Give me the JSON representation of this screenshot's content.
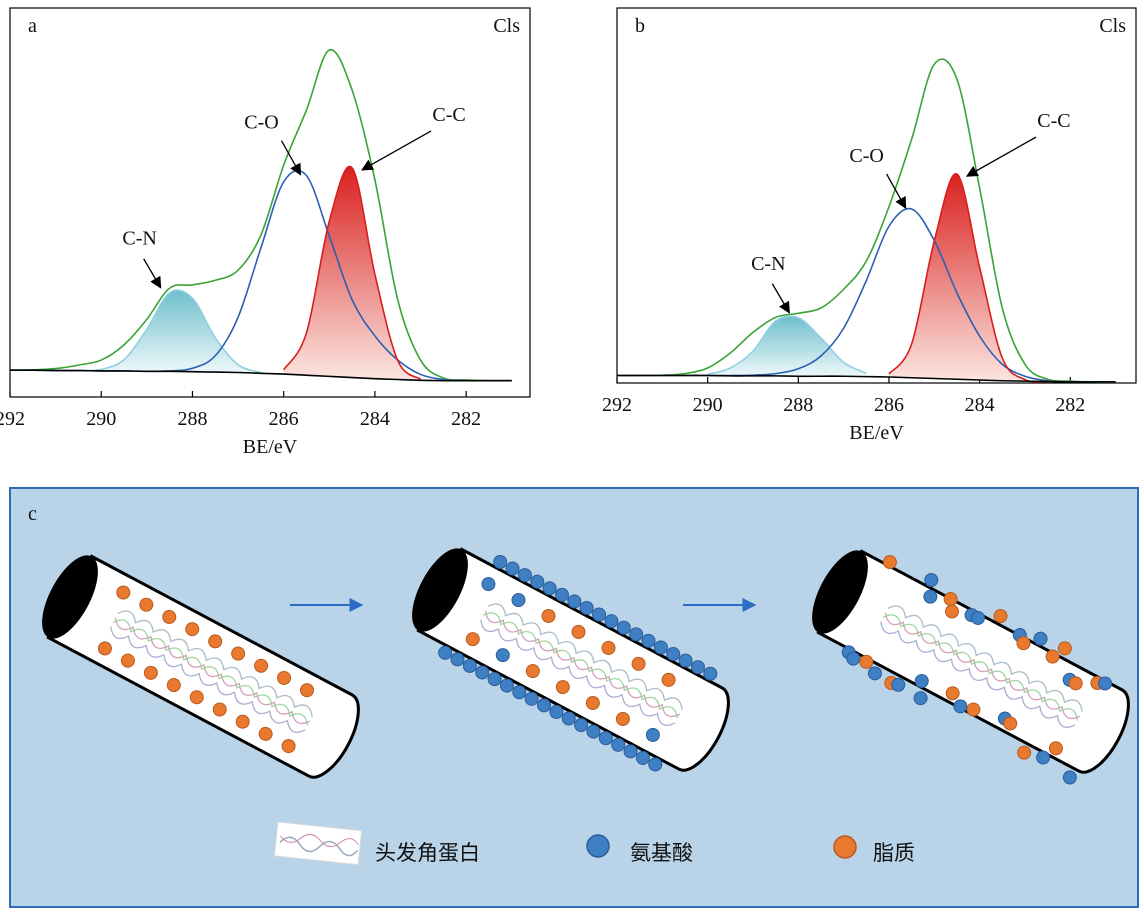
{
  "chart_data": [
    {
      "type": "line",
      "panel_label": "a",
      "corner_label": "Cls",
      "x_label": "BE/eV",
      "xlim": [
        292,
        280.6
      ],
      "ylim": [
        0,
        100
      ],
      "xticks": [
        292,
        290,
        288,
        286,
        284,
        282
      ],
      "x": [
        292,
        291.5,
        291,
        290.5,
        290,
        289.5,
        289,
        288.5,
        288,
        287.5,
        287,
        286.5,
        286,
        285.5,
        285,
        284.5,
        284,
        283.5,
        283,
        282.5,
        282,
        281.5,
        281
      ],
      "series": [
        {
          "color": "#3aa335",
          "values": [
            6.9,
            7.0,
            7.3,
            8.2,
            9.5,
            13.4,
            20,
            28,
            28.8,
            30,
            32.6,
            41.6,
            59.6,
            73.8,
            89.2,
            78.9,
            55.8,
            25,
            9.5,
            4.9,
            4.4,
            4.2,
            4.2
          ]
        },
        {
          "name": "C-N",
          "color": "#8fd0e0",
          "area": true,
          "values": [
            null,
            null,
            null,
            6.8,
            7.1,
            9.6,
            17.4,
            26.8,
            25.4,
            15.2,
            8.3,
            6.3,
            null,
            null,
            null,
            null,
            null,
            null,
            null,
            null,
            null,
            null,
            null
          ]
        },
        {
          "name": "C-O",
          "color": "#2b5fb4",
          "values": [
            6.9,
            6.9,
            6.8,
            6.8,
            6.7,
            6.7,
            6.6,
            6.7,
            7.4,
            10.6,
            20.5,
            38.3,
            55.3,
            56.9,
            41.4,
            25,
            15.7,
            9.5,
            5.8,
            4.5,
            4.2,
            4.2,
            4.2
          ]
        },
        {
          "name": "C-C",
          "color": "#d81e1e",
          "area": true,
          "values": [
            null,
            null,
            null,
            null,
            null,
            null,
            null,
            null,
            null,
            null,
            null,
            null,
            7.0,
            16.5,
            45.2,
            58.9,
            31.5,
            9.4,
            4.6,
            null,
            null,
            null,
            null
          ]
        },
        {
          "color": "#000000",
          "values": [
            6.9,
            6.9,
            6.8,
            6.8,
            6.7,
            6.7,
            6.6,
            6.6,
            6.5,
            6.4,
            6.3,
            6.1,
            5.9,
            5.6,
            5.3,
            5.0,
            4.7,
            4.5,
            4.3,
            4.2,
            4.2,
            4.2,
            4.2
          ]
        }
      ]
    },
    {
      "type": "line",
      "panel_label": "b",
      "corner_label": "Cls",
      "x_label": "BE/eV",
      "xlim": [
        292,
        280.55
      ],
      "ylim": [
        0,
        100
      ],
      "xticks": [
        292,
        290,
        288,
        286,
        284,
        282
      ],
      "x": [
        292,
        291.5,
        291,
        290.5,
        290,
        289.5,
        289,
        288.5,
        288,
        287.5,
        287,
        286.5,
        286,
        285.5,
        285,
        284.5,
        284,
        283.5,
        283,
        282.5,
        282,
        281.5,
        281
      ],
      "series": [
        {
          "color": "#3aa335",
          "values": [
            2.0,
            2.0,
            2.1,
            2.5,
            4,
            8,
            13.5,
            17.5,
            18.6,
            20,
            25,
            32.5,
            47,
            65,
            85,
            81,
            52,
            20,
            5,
            1,
            0.5,
            0.3,
            0.3
          ]
        },
        {
          "name": "C-N",
          "color": "#8fd0e0",
          "area": true,
          "values": [
            null,
            null,
            null,
            null,
            2.3,
            4,
            8.5,
            16.5,
            17.4,
            12,
            5.5,
            2.6,
            null,
            null,
            null,
            null,
            null,
            null,
            null,
            null,
            null,
            null,
            null
          ]
        },
        {
          "name": "C-O",
          "color": "#2b5fb4",
          "values": [
            2.0,
            2.0,
            2.0,
            2.0,
            2.0,
            2.0,
            2.1,
            2.5,
            3.8,
            7.2,
            14.6,
            27.3,
            41.8,
            46.4,
            38,
            24,
            12.5,
            5,
            1.8,
            0.6,
            0.3,
            0.3,
            0.3
          ]
        },
        {
          "name": "C-C",
          "color": "#d81e1e",
          "area": true,
          "values": [
            null,
            null,
            null,
            null,
            null,
            null,
            null,
            null,
            null,
            null,
            null,
            null,
            2.4,
            10.4,
            37.9,
            55.7,
            30.8,
            6.7,
            0.9,
            0.4,
            null,
            null,
            null
          ]
        },
        {
          "color": "#000000",
          "values": [
            2.0,
            2.0,
            2.0,
            2.0,
            2.0,
            1.9,
            1.9,
            1.9,
            1.8,
            1.8,
            1.8,
            1.7,
            1.6,
            1.4,
            1.2,
            1.0,
            0.8,
            0.6,
            0.5,
            0.4,
            0.3,
            0.3,
            0.3
          ]
        }
      ]
    }
  ],
  "panel_c": {
    "label": "c",
    "legend": [
      "头发角蛋白",
      "氨基酸",
      "脂质"
    ]
  }
}
